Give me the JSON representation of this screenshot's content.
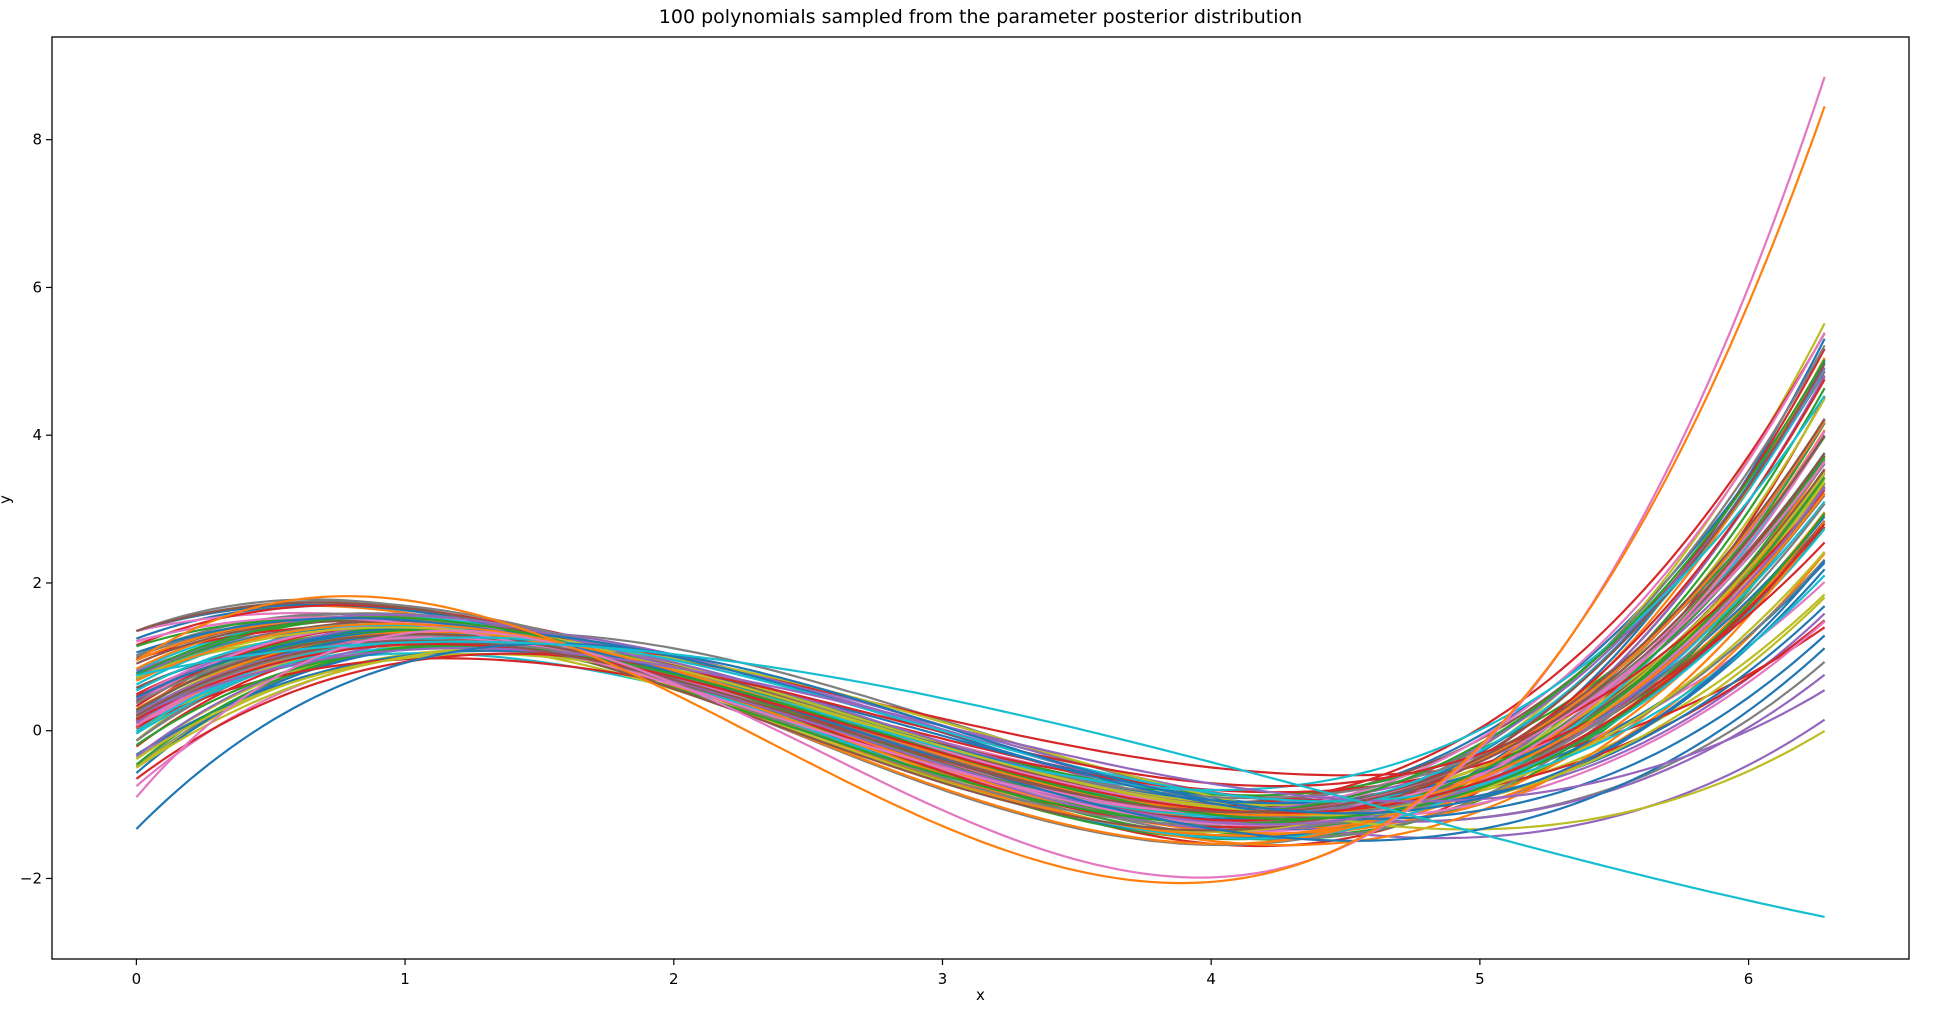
{
  "chart_data": {
    "type": "line",
    "title": "100 polynomials sampled from the parameter posterior distribution",
    "xlabel": "x",
    "ylabel": "y",
    "xlim": [
      -0.314,
      6.597
    ],
    "ylim": [
      -3.09,
      9.39
    ],
    "xticks": [
      0,
      1,
      2,
      3,
      4,
      5,
      6
    ],
    "yticks": [
      -2,
      0,
      2,
      4,
      6,
      8
    ],
    "x_domain": [
      0,
      6.283
    ],
    "n_series": 100,
    "polynomial_degree": 3,
    "legend": "none",
    "grid": false,
    "mean_curve_samples": {
      "x": [
        0,
        1,
        2,
        3,
        4,
        5,
        6.283
      ],
      "y": [
        0.45,
        0.95,
        0.78,
        -0.12,
        -1.15,
        -1.45,
        3.3
      ]
    },
    "highlight_series": [
      {
        "color": "#e377c2",
        "y_at_x0": -0.9,
        "y_at_xmax": 8.85
      },
      {
        "color": "#ff7f0e",
        "y_at_x0": 0.95,
        "y_at_xmax": 8.45
      },
      {
        "color": "#17becf",
        "y_at_x0": 0.75,
        "y_at_xmax": -2.52
      },
      {
        "color": "#1f77b4",
        "y_at_x0": -1.33,
        "y_at_xmax": 2.3
      }
    ],
    "colors": [
      "#1f77b4",
      "#ff7f0e",
      "#2ca02c",
      "#d62728",
      "#9467bd",
      "#8c564b",
      "#e377c2",
      "#7f7f7f",
      "#bcbd22",
      "#17becf"
    ]
  }
}
